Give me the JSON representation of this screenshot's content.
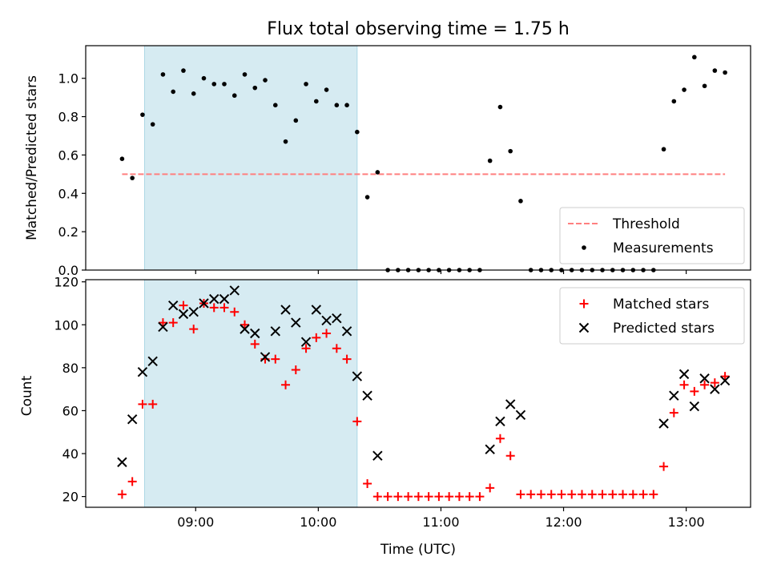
{
  "chart_data": [
    {
      "type": "scatter",
      "title": "Flux total observing time = 1.75 h",
      "xlabel": "",
      "ylabel": "Matched/Predicted stars",
      "ylim": [
        0,
        1.17
      ],
      "yticks": [
        "0.0",
        "0.2",
        "0.4",
        "0.6",
        "0.8",
        "1.0"
      ],
      "grid": false,
      "legend_position": "lower-right",
      "highlight_interval": {
        "start": "08:35",
        "end": "10:19",
        "color": "#add8e6"
      },
      "threshold": {
        "name": "Threshold",
        "value": 0.5,
        "x_start": "08:24",
        "x_end": "13:19",
        "color": "#ff7f7f",
        "style": "dashed"
      },
      "series": [
        {
          "name": "Measurements",
          "marker": "dot",
          "color": "#000000",
          "points": [
            {
              "x": "08:24",
              "y": 0.58
            },
            {
              "x": "08:29",
              "y": 0.48
            },
            {
              "x": "08:34",
              "y": 0.81
            },
            {
              "x": "08:39",
              "y": 0.76
            },
            {
              "x": "08:44",
              "y": 1.02
            },
            {
              "x": "08:49",
              "y": 0.93
            },
            {
              "x": "08:54",
              "y": 1.04
            },
            {
              "x": "08:59",
              "y": 0.92
            },
            {
              "x": "09:04",
              "y": 1.0
            },
            {
              "x": "09:09",
              "y": 0.97
            },
            {
              "x": "09:14",
              "y": 0.97
            },
            {
              "x": "09:19",
              "y": 0.91
            },
            {
              "x": "09:24",
              "y": 1.02
            },
            {
              "x": "09:29",
              "y": 0.95
            },
            {
              "x": "09:34",
              "y": 0.99
            },
            {
              "x": "09:39",
              "y": 0.86
            },
            {
              "x": "09:44",
              "y": 0.67
            },
            {
              "x": "09:49",
              "y": 0.78
            },
            {
              "x": "09:54",
              "y": 0.97
            },
            {
              "x": "09:59",
              "y": 0.88
            },
            {
              "x": "10:04",
              "y": 0.94
            },
            {
              "x": "10:09",
              "y": 0.86
            },
            {
              "x": "10:14",
              "y": 0.86
            },
            {
              "x": "10:19",
              "y": 0.72
            },
            {
              "x": "10:24",
              "y": 0.38
            },
            {
              "x": "10:29",
              "y": 0.51
            },
            {
              "x": "10:34",
              "y": 0.0
            },
            {
              "x": "10:39",
              "y": 0.0
            },
            {
              "x": "10:44",
              "y": 0.0
            },
            {
              "x": "10:49",
              "y": 0.0
            },
            {
              "x": "10:54",
              "y": 0.0
            },
            {
              "x": "10:59",
              "y": 0.0
            },
            {
              "x": "11:04",
              "y": 0.0
            },
            {
              "x": "11:09",
              "y": 0.0
            },
            {
              "x": "11:14",
              "y": 0.0
            },
            {
              "x": "11:19",
              "y": 0.0
            },
            {
              "x": "11:24",
              "y": 0.57
            },
            {
              "x": "11:29",
              "y": 0.85
            },
            {
              "x": "11:34",
              "y": 0.62
            },
            {
              "x": "11:39",
              "y": 0.36
            },
            {
              "x": "11:44",
              "y": 0.0
            },
            {
              "x": "11:49",
              "y": 0.0
            },
            {
              "x": "11:54",
              "y": 0.0
            },
            {
              "x": "11:59",
              "y": 0.0
            },
            {
              "x": "12:04",
              "y": 0.0
            },
            {
              "x": "12:09",
              "y": 0.0
            },
            {
              "x": "12:14",
              "y": 0.0
            },
            {
              "x": "12:19",
              "y": 0.0
            },
            {
              "x": "12:24",
              "y": 0.0
            },
            {
              "x": "12:29",
              "y": 0.0
            },
            {
              "x": "12:34",
              "y": 0.0
            },
            {
              "x": "12:39",
              "y": 0.0
            },
            {
              "x": "12:44",
              "y": 0.0
            },
            {
              "x": "12:49",
              "y": 0.63
            },
            {
              "x": "12:54",
              "y": 0.88
            },
            {
              "x": "12:59",
              "y": 0.94
            },
            {
              "x": "13:04",
              "y": 1.11
            },
            {
              "x": "13:09",
              "y": 0.96
            },
            {
              "x": "13:14",
              "y": 1.04
            },
            {
              "x": "13:19",
              "y": 1.03
            }
          ]
        }
      ]
    },
    {
      "type": "scatter",
      "title": "",
      "xlabel": "Time (UTC)",
      "ylabel": "Count",
      "ylim": [
        15,
        121
      ],
      "yticks": [
        "20",
        "40",
        "60",
        "80",
        "100",
        "120"
      ],
      "xticks": [
        "09:00",
        "10:00",
        "11:00",
        "12:00",
        "13:00"
      ],
      "grid": false,
      "legend_position": "upper-right",
      "highlight_interval": {
        "start": "08:35",
        "end": "10:19",
        "color": "#add8e6"
      },
      "series": [
        {
          "name": "Matched stars",
          "marker": "plus",
          "color": "#ff0000",
          "points": [
            {
              "x": "08:24",
              "y": 21
            },
            {
              "x": "08:29",
              "y": 27
            },
            {
              "x": "08:34",
              "y": 63
            },
            {
              "x": "08:39",
              "y": 63
            },
            {
              "x": "08:44",
              "y": 101
            },
            {
              "x": "08:49",
              "y": 101
            },
            {
              "x": "08:54",
              "y": 109
            },
            {
              "x": "08:59",
              "y": 98
            },
            {
              "x": "09:04",
              "y": 110
            },
            {
              "x": "09:09",
              "y": 108
            },
            {
              "x": "09:14",
              "y": 108
            },
            {
              "x": "09:19",
              "y": 106
            },
            {
              "x": "09:24",
              "y": 100
            },
            {
              "x": "09:29",
              "y": 91
            },
            {
              "x": "09:34",
              "y": 84
            },
            {
              "x": "09:39",
              "y": 84
            },
            {
              "x": "09:44",
              "y": 72
            },
            {
              "x": "09:49",
              "y": 79
            },
            {
              "x": "09:54",
              "y": 89
            },
            {
              "x": "09:59",
              "y": 94
            },
            {
              "x": "10:04",
              "y": 96
            },
            {
              "x": "10:09",
              "y": 89
            },
            {
              "x": "10:14",
              "y": 84
            },
            {
              "x": "10:19",
              "y": 55
            },
            {
              "x": "10:24",
              "y": 26
            },
            {
              "x": "10:29",
              "y": 20
            },
            {
              "x": "10:34",
              "y": 20
            },
            {
              "x": "10:39",
              "y": 20
            },
            {
              "x": "10:44",
              "y": 20
            },
            {
              "x": "10:49",
              "y": 20
            },
            {
              "x": "10:54",
              "y": 20
            },
            {
              "x": "10:59",
              "y": 20
            },
            {
              "x": "11:04",
              "y": 20
            },
            {
              "x": "11:09",
              "y": 20
            },
            {
              "x": "11:14",
              "y": 20
            },
            {
              "x": "11:19",
              "y": 20
            },
            {
              "x": "11:24",
              "y": 24
            },
            {
              "x": "11:29",
              "y": 47
            },
            {
              "x": "11:34",
              "y": 39
            },
            {
              "x": "11:39",
              "y": 21
            },
            {
              "x": "11:44",
              "y": 21
            },
            {
              "x": "11:49",
              "y": 21
            },
            {
              "x": "11:54",
              "y": 21
            },
            {
              "x": "11:59",
              "y": 21
            },
            {
              "x": "12:04",
              "y": 21
            },
            {
              "x": "12:09",
              "y": 21
            },
            {
              "x": "12:14",
              "y": 21
            },
            {
              "x": "12:19",
              "y": 21
            },
            {
              "x": "12:24",
              "y": 21
            },
            {
              "x": "12:29",
              "y": 21
            },
            {
              "x": "12:34",
              "y": 21
            },
            {
              "x": "12:39",
              "y": 21
            },
            {
              "x": "12:44",
              "y": 21
            },
            {
              "x": "12:49",
              "y": 34
            },
            {
              "x": "12:54",
              "y": 59
            },
            {
              "x": "12:59",
              "y": 72
            },
            {
              "x": "13:04",
              "y": 69
            },
            {
              "x": "13:09",
              "y": 72
            },
            {
              "x": "13:14",
              "y": 73
            },
            {
              "x": "13:19",
              "y": 76
            }
          ]
        },
        {
          "name": "Predicted stars",
          "marker": "x",
          "color": "#000000",
          "points": [
            {
              "x": "08:24",
              "y": 36
            },
            {
              "x": "08:29",
              "y": 56
            },
            {
              "x": "08:34",
              "y": 78
            },
            {
              "x": "08:39",
              "y": 83
            },
            {
              "x": "08:44",
              "y": 99
            },
            {
              "x": "08:49",
              "y": 109
            },
            {
              "x": "08:54",
              "y": 105
            },
            {
              "x": "08:59",
              "y": 106
            },
            {
              "x": "09:04",
              "y": 110
            },
            {
              "x": "09:09",
              "y": 112
            },
            {
              "x": "09:14",
              "y": 112
            },
            {
              "x": "09:19",
              "y": 116
            },
            {
              "x": "09:24",
              "y": 98
            },
            {
              "x": "09:29",
              "y": 96
            },
            {
              "x": "09:34",
              "y": 85
            },
            {
              "x": "09:39",
              "y": 97
            },
            {
              "x": "09:44",
              "y": 107
            },
            {
              "x": "09:49",
              "y": 101
            },
            {
              "x": "09:54",
              "y": 92
            },
            {
              "x": "09:59",
              "y": 107
            },
            {
              "x": "10:04",
              "y": 102
            },
            {
              "x": "10:09",
              "y": 103
            },
            {
              "x": "10:14",
              "y": 97
            },
            {
              "x": "10:19",
              "y": 76
            },
            {
              "x": "10:24",
              "y": 67
            },
            {
              "x": "10:29",
              "y": 39
            },
            {
              "x": "11:24",
              "y": 42
            },
            {
              "x": "11:29",
              "y": 55
            },
            {
              "x": "11:34",
              "y": 63
            },
            {
              "x": "11:39",
              "y": 58
            },
            {
              "x": "12:49",
              "y": 54
            },
            {
              "x": "12:54",
              "y": 67
            },
            {
              "x": "12:59",
              "y": 77
            },
            {
              "x": "13:04",
              "y": 62
            },
            {
              "x": "13:09",
              "y": 75
            },
            {
              "x": "13:14",
              "y": 70
            },
            {
              "x": "13:19",
              "y": 74
            }
          ]
        }
      ]
    }
  ]
}
